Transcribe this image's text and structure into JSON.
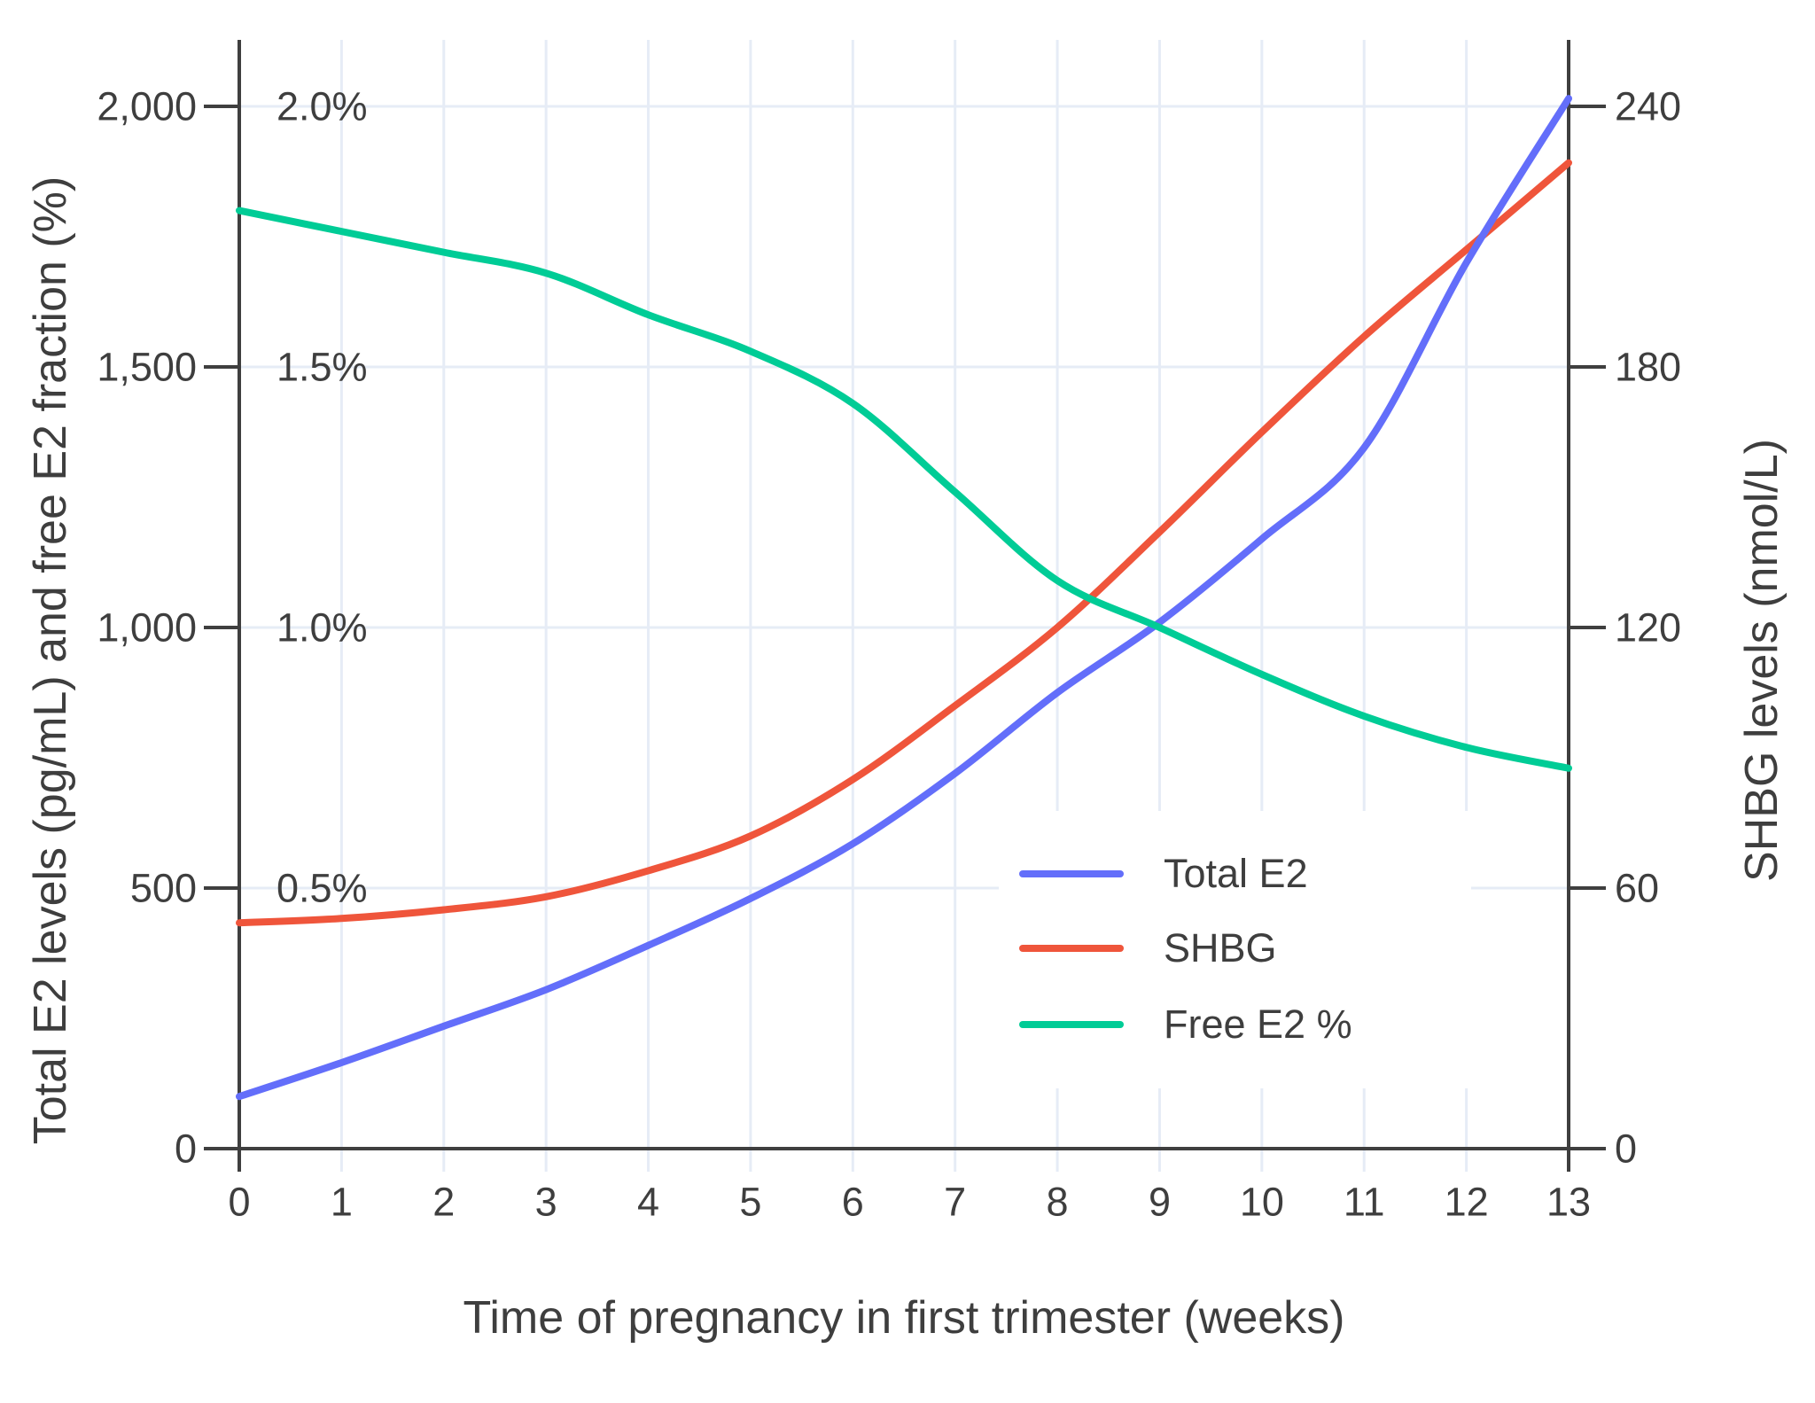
{
  "figure": {
    "background": "#ffffff",
    "grid_color": "#e6ecf6",
    "axis_color": "#3f3f3f",
    "text_color": "#3e3e3e"
  },
  "chart_data": {
    "type": "line",
    "xlabel": "Time of pregnancy in first trimester (weeks)",
    "ylabel_left": "Total E2 levels (pg/mL) and free E2 fraction (%)",
    "ylabel_right": "SHBG levels (nmol/L)",
    "x": [
      0,
      1,
      2,
      3,
      4,
      5,
      6,
      7,
      8,
      9,
      10,
      11,
      12,
      13
    ],
    "x_tick_labels": [
      "0",
      "1",
      "2",
      "3",
      "4",
      "5",
      "6",
      "7",
      "8",
      "9",
      "10",
      "11",
      "12",
      "13"
    ],
    "left_axis": {
      "tick_values": [
        0,
        500,
        1000,
        1500,
        2000
      ],
      "tick_labels": [
        "0",
        "500",
        "1,000",
        "1,500",
        "2,000"
      ],
      "range": [
        0,
        2128
      ]
    },
    "percent_axis": {
      "tick_values": [
        0.5,
        1.0,
        1.5,
        2.0
      ],
      "tick_labels": [
        "0.5%",
        "1.0%",
        "1.5%",
        "2.0%"
      ],
      "range": [
        0,
        2.128
      ]
    },
    "right_axis": {
      "tick_values": [
        0,
        60,
        120,
        180,
        240
      ],
      "tick_labels": [
        "0",
        "60",
        "120",
        "180",
        "240"
      ],
      "range": [
        0,
        255.4
      ]
    },
    "grid": true,
    "legend_position": "inside-right-lower",
    "series": [
      {
        "name": "SHBG",
        "axis": "right",
        "unit": "nmol/L",
        "color": "#EF553B",
        "values": [
          52,
          53,
          55,
          58,
          64,
          72,
          85,
          102,
          120,
          142,
          165,
          187,
          207,
          227
        ]
      },
      {
        "name": "Total E2",
        "axis": "left",
        "unit": "pg/mL",
        "color": "#636EFA",
        "values": [
          100,
          165,
          235,
          305,
          390,
          480,
          585,
          720,
          875,
          1010,
          1170,
          1345,
          1700,
          2015
        ]
      },
      {
        "name": "Free E2 %",
        "axis": "percent",
        "unit": "%",
        "color": "#00CC96",
        "values": [
          1.8,
          1.76,
          1.72,
          1.68,
          1.6,
          1.53,
          1.43,
          1.26,
          1.09,
          1.0,
          0.91,
          0.83,
          0.77,
          0.73
        ]
      }
    ],
    "legend_order": [
      "Total E2",
      "SHBG",
      "Free E2 %"
    ]
  },
  "legend": {
    "items": [
      {
        "label": "Total E2",
        "color": "#636EFA"
      },
      {
        "label": "SHBG",
        "color": "#EF553B"
      },
      {
        "label": "Free E2 %",
        "color": "#00CC96"
      }
    ]
  }
}
